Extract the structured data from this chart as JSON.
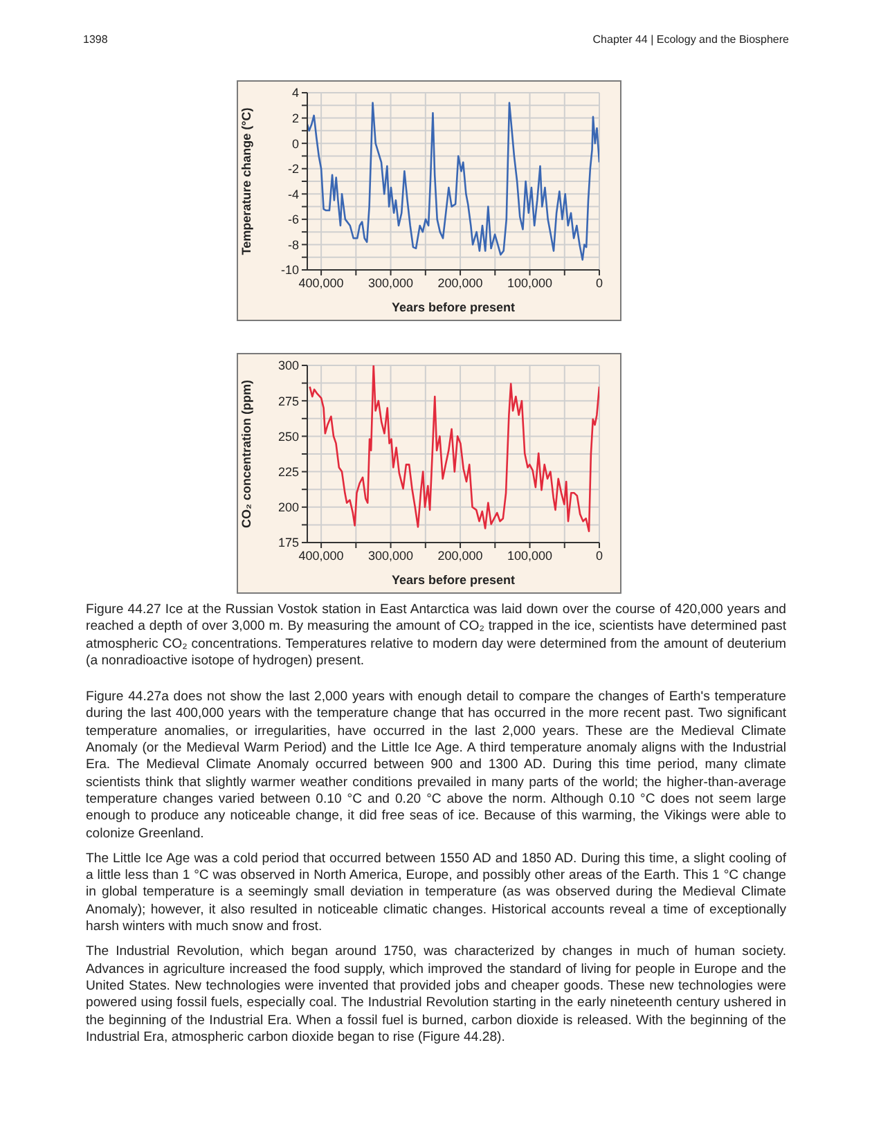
{
  "chart_data": [
    {
      "type": "line",
      "ylabel": "Temperature change (°C)",
      "xlabel": "Years before present",
      "xlim": [
        420000,
        0
      ],
      "xticks": [
        {
          "value": 400000,
          "label": "400,000"
        },
        {
          "value": 350000,
          "label": null
        },
        {
          "value": 300000,
          "label": "300,000"
        },
        {
          "value": 250000,
          "label": null
        },
        {
          "value": 200000,
          "label": "200,000"
        },
        {
          "value": 150000,
          "label": null
        },
        {
          "value": 100000,
          "label": "100,000"
        },
        {
          "value": 50000,
          "label": null
        },
        0
      ],
      "ylim": [
        -10,
        4
      ],
      "yticks": [
        -10,
        {
          "value": -9,
          "label": null
        },
        -8,
        {
          "value": -7,
          "label": null
        },
        -6,
        {
          "value": -5,
          "label": null
        },
        -4,
        {
          "value": -3,
          "label": null
        },
        -2,
        {
          "value": -1,
          "label": null
        },
        0,
        {
          "value": 1,
          "label": null
        },
        2,
        {
          "value": 3,
          "label": null
        },
        4
      ],
      "grid": true,
      "annotations": [
        "1398",
        "Chapter 44 | Ecology and the Biosphere"
      ],
      "series": [
        {
          "color": "#3a67b3",
          "x": [
            420000,
            417300,
            413800,
            410400,
            406900,
            403400,
            400000,
            396500,
            393100,
            388200,
            384100,
            381300,
            378500,
            375800,
            372300,
            370200,
            365400,
            358500,
            353600,
            348100,
            344600,
            341200,
            337700,
            334200,
            330800,
            325900,
            321800,
            319000,
            313500,
            309300,
            305200,
            302400,
            299600,
            295500,
            292700,
            288600,
            284400,
            280300,
            276100,
            272000,
            267800,
            263700,
            258100,
            254000,
            249800,
            245700,
            242900,
            239400,
            236700,
            233200,
            229100,
            224900,
            220700,
            216600,
            212400,
            206900,
            202800,
            198600,
            195800,
            191700,
            188900,
            184800,
            182000,
            176500,
            172300,
            168200,
            164000,
            159900,
            155700,
            150200,
            146000,
            141900,
            137700,
            133600,
            129400,
            126600,
            122500,
            118300,
            114200,
            110000,
            105900,
            101700,
            97600,
            93400,
            89300,
            85100,
            82300,
            78200,
            74000,
            69900,
            65700,
            61600,
            57400,
            53300,
            49100,
            45000,
            40800,
            36700,
            32500,
            28400,
            24200,
            21500,
            18700,
            15900,
            13100,
            10400,
            9000,
            6200,
            3500,
            0
          ],
          "values": [
            1.5,
            1.0,
            1.5,
            2.2,
            0.5,
            -1,
            -2,
            -5.2,
            -5.3,
            -5.3,
            -2.5,
            -4.5,
            -2.7,
            -4.5,
            -6.5,
            -4,
            -6,
            -6.5,
            -7.5,
            -7.5,
            -6.5,
            -6.2,
            -7.5,
            -7.8,
            -5,
            3.2,
            0,
            -0.5,
            -1.5,
            -4,
            -1.8,
            -5,
            -3.5,
            -5.5,
            -4.5,
            -6.5,
            -5.5,
            -2.2,
            -4.5,
            -6.5,
            -8.2,
            -8.3,
            -6.5,
            -7,
            -6,
            -6.5,
            -3,
            2.4,
            -2.5,
            -6,
            -7,
            -7.5,
            -5.5,
            -3.5,
            -5,
            -4.8,
            -1,
            -2.2,
            -1.5,
            -4,
            -4.8,
            -6.5,
            -8,
            -7,
            -8.5,
            -6.5,
            -8.5,
            -5,
            -8.3,
            -7.2,
            -8,
            -8.8,
            -8.5,
            -6,
            3.2,
            1.5,
            -1,
            -3,
            -5.8,
            -6.8,
            -3,
            -5.5,
            -3.5,
            -6.5,
            -4.5,
            -1.8,
            -5,
            -3.5,
            -6,
            -7.2,
            -8.5,
            -5.5,
            -3.8,
            -6,
            -4,
            -6.5,
            -5.5,
            -7.5,
            -6.5,
            -8,
            -9.2,
            -8,
            -8.2,
            -4.5,
            -2,
            -0.5,
            2.1,
            0,
            1.2,
            -1.5
          ]
        }
      ]
    },
    {
      "type": "line",
      "ylabel": "CO₂ concentration (ppm)",
      "xlabel": "Years before present",
      "xlim": [
        420000,
        0
      ],
      "xticks": [
        {
          "value": 400000,
          "label": "400,000"
        },
        {
          "value": 350000,
          "label": null
        },
        {
          "value": 300000,
          "label": "300,000"
        },
        {
          "value": 250000,
          "label": null
        },
        {
          "value": 200000,
          "label": "200,000"
        },
        {
          "value": 150000,
          "label": null
        },
        {
          "value": 100000,
          "label": "100,000"
        },
        {
          "value": 50000,
          "label": null
        },
        0
      ],
      "ylim": [
        175,
        300
      ],
      "yticks": [
        175,
        {
          "value": 187.5,
          "label": null
        },
        200,
        {
          "value": 212.5,
          "label": null
        },
        225,
        {
          "value": 237.5,
          "label": null
        },
        250,
        {
          "value": 262.5,
          "label": null
        },
        275,
        {
          "value": 287.5,
          "label": null
        },
        300
      ],
      "grid": true,
      "annotations": [
        "Figure 44.27 Ice at the Russian Vostok station in East Antarctica was laid down over the course of 420,000 years and reached a depth of over 3,000 m. By measuring the amount of CO₂ trapped in the ice, scientists have determined past atmospheric CO₂ concentrations. Temperatures relative to modern day were determined from the amount of deuterium (a nonradioactive isotope of hydrogen) present.",
        "Figure 44.27a does not show the last 2,000 years with enough detail to compare the changes of Earth's temperature during the last 400,000 years with the temperature change that has occurred in the more recent past. Two significant temperature anomalies, or irregularities, have occurred in the last 2,000 years. These are the Medieval Climate Anomaly (or the Medieval Warm Period) and the Little Ice Age. A third temperature anomaly aligns with the Industrial Era. The Medieval Climate Anomaly occurred between 900 and 1300 AD. During this time period, many climate scientists think that slightly warmer weather conditions prevailed in many parts of the world; the higher-than-average temperature changes varied between 0.10 °C and 0.20 °C above the norm. Although 0.10 °C does not seem large enough to produce any noticeable change, it did free seas of ice. Because of this warming, the Vikings were able to colonize Greenland.",
        "The Little Ice Age was a cold period that occurred between 1550 AD and 1850 AD. During this time, a slight cooling of a little less than 1 °C was observed in North America, Europe, and possibly other areas of the Earth. This 1 °C change in global temperature is a seemingly small deviation in temperature (as was observed during the Medieval Climate Anomaly); however, it also resulted in noticeable climatic changes. Historical accounts reveal a time of exceptionally harsh winters with much snow and frost.",
        "The Industrial Revolution, which began around 1750, was characterized by changes in much of human society. Advances in agriculture increased the food supply, which improved the standard of living for people in Europe and the United States. New technologies were invented that provided jobs and cheaper goods. These new technologies were powered using fossil fuels, especially coal. The Industrial Revolution starting in the early nineteenth century ushered in the beginning of the Industrial Era. When a fossil fuel is burned, carbon dioxide is released. With the beginning of the Industrial Era, atmospheric carbon dioxide began to rise (Figure 44.28)."
      ],
      "series": [
        {
          "color": "#e22a3c",
          "x": [
            416400,
            412800,
            410000,
            405700,
            400000,
            396500,
            394300,
            390800,
            385800,
            382200,
            378700,
            374400,
            370200,
            365900,
            363100,
            358800,
            354500,
            351700,
            348900,
            344600,
            340300,
            336100,
            333200,
            330400,
            328300,
            324700,
            321900,
            317600,
            313300,
            309100,
            304800,
            302000,
            299100,
            296300,
            292000,
            287800,
            282100,
            277800,
            273500,
            269300,
            265000,
            260800,
            256500,
            253600,
            250800,
            246500,
            243700,
            239400,
            236600,
            233800,
            229500,
            225200,
            221000,
            216700,
            212400,
            208200,
            203900,
            199700,
            195400,
            191100,
            186900,
            182600,
            176900,
            172700,
            168400,
            164100,
            159900,
            155600,
            151300,
            147100,
            142800,
            138500,
            134300,
            130000,
            127200,
            124300,
            120100,
            115800,
            111500,
            107300,
            103000,
            100200,
            95900,
            91700,
            87400,
            83100,
            78900,
            74600,
            70300,
            66100,
            63200,
            59000,
            54700,
            50400,
            47600,
            44800,
            40500,
            36200,
            32000,
            27700,
            23400,
            19200,
            14900,
            12100,
            9200,
            6400,
            3600,
            0
          ],
          "values": [
            285,
            278,
            283,
            280,
            277,
            270,
            252,
            258,
            264,
            250,
            245,
            228,
            225,
            210,
            203,
            205,
            196,
            187,
            210,
            217,
            221,
            206,
            203,
            248,
            240,
            300,
            268,
            275,
            260,
            252,
            270,
            245,
            248,
            228,
            242,
            224,
            213,
            230,
            230,
            213,
            200,
            186,
            212,
            225,
            200,
            215,
            198,
            246,
            278,
            240,
            250,
            220,
            230,
            240,
            255,
            225,
            250,
            245,
            227,
            218,
            230,
            200,
            198,
            190,
            197,
            185,
            203,
            188,
            192,
            196,
            190,
            192,
            210,
            265,
            287,
            268,
            278,
            265,
            275,
            238,
            228,
            230,
            226,
            214,
            238,
            212,
            230,
            220,
            225,
            207,
            198,
            220,
            210,
            202,
            218,
            190,
            210,
            210,
            208,
            195,
            190,
            192,
            183,
            237,
            262,
            258,
            265,
            285
          ]
        }
      ]
    }
  ]
}
